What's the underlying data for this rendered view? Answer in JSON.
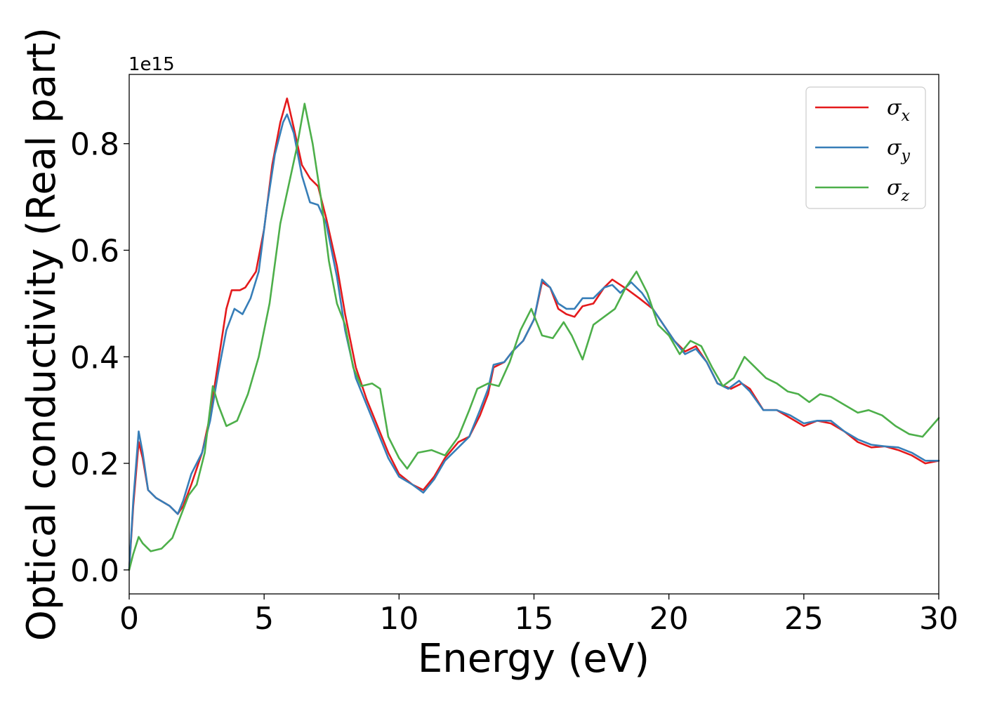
{
  "chart_data": {
    "type": "line",
    "title": "",
    "xlabel": "Energy (eV)",
    "ylabel": "Optical conductivity (Real part)",
    "y_offset_label": "1e15",
    "xlim": [
      0,
      30
    ],
    "ylim": [
      -0.045,
      0.93
    ],
    "x_ticks": [
      0,
      5,
      10,
      15,
      20,
      25,
      30
    ],
    "x_tick_labels": [
      "0",
      "5",
      "10",
      "15",
      "20",
      "25",
      "30"
    ],
    "y_ticks": [
      0.0,
      0.2,
      0.4,
      0.6,
      0.8
    ],
    "y_tick_labels": [
      "0.0",
      "0.2",
      "0.4",
      "0.6",
      "0.8"
    ],
    "grid": false,
    "legend_position": "top-right",
    "legend": [
      {
        "symbol": "σ",
        "subscript": "x",
        "color": "#e41a1c"
      },
      {
        "symbol": "σ",
        "subscript": "y",
        "color": "#377eb8"
      },
      {
        "symbol": "σ",
        "subscript": "z",
        "color": "#4daf4a"
      }
    ],
    "series": [
      {
        "name": "σx",
        "color": "#e41a1c",
        "points": [
          [
            0,
            0
          ],
          [
            0.15,
            0.12
          ],
          [
            0.35,
            0.24
          ],
          [
            0.5,
            0.21
          ],
          [
            0.7,
            0.15
          ],
          [
            1.0,
            0.135
          ],
          [
            1.5,
            0.12
          ],
          [
            1.8,
            0.105
          ],
          [
            2.0,
            0.12
          ],
          [
            2.3,
            0.16
          ],
          [
            2.7,
            0.22
          ],
          [
            3.0,
            0.29
          ],
          [
            3.3,
            0.39
          ],
          [
            3.6,
            0.49
          ],
          [
            3.8,
            0.525
          ],
          [
            4.1,
            0.525
          ],
          [
            4.3,
            0.53
          ],
          [
            4.7,
            0.56
          ],
          [
            5.0,
            0.64
          ],
          [
            5.3,
            0.76
          ],
          [
            5.6,
            0.84
          ],
          [
            5.85,
            0.885
          ],
          [
            6.1,
            0.83
          ],
          [
            6.4,
            0.76
          ],
          [
            6.7,
            0.735
          ],
          [
            7.0,
            0.72
          ],
          [
            7.3,
            0.66
          ],
          [
            7.7,
            0.57
          ],
          [
            8.0,
            0.48
          ],
          [
            8.4,
            0.38
          ],
          [
            8.8,
            0.32
          ],
          [
            9.2,
            0.27
          ],
          [
            9.6,
            0.22
          ],
          [
            10.0,
            0.18
          ],
          [
            10.5,
            0.16
          ],
          [
            10.9,
            0.15
          ],
          [
            11.3,
            0.175
          ],
          [
            11.7,
            0.21
          ],
          [
            12.2,
            0.24
          ],
          [
            12.6,
            0.25
          ],
          [
            13.0,
            0.29
          ],
          [
            13.3,
            0.33
          ],
          [
            13.5,
            0.38
          ],
          [
            13.9,
            0.39
          ],
          [
            14.2,
            0.41
          ],
          [
            14.6,
            0.43
          ],
          [
            15.0,
            0.47
          ],
          [
            15.3,
            0.54
          ],
          [
            15.6,
            0.53
          ],
          [
            15.9,
            0.49
          ],
          [
            16.2,
            0.48
          ],
          [
            16.5,
            0.475
          ],
          [
            16.8,
            0.495
          ],
          [
            17.2,
            0.5
          ],
          [
            17.6,
            0.53
          ],
          [
            17.9,
            0.545
          ],
          [
            18.2,
            0.535
          ],
          [
            18.5,
            0.525
          ],
          [
            18.9,
            0.51
          ],
          [
            19.4,
            0.49
          ],
          [
            19.8,
            0.46
          ],
          [
            20.2,
            0.43
          ],
          [
            20.6,
            0.41
          ],
          [
            21.0,
            0.42
          ],
          [
            21.4,
            0.39
          ],
          [
            21.8,
            0.35
          ],
          [
            22.3,
            0.34
          ],
          [
            22.7,
            0.35
          ],
          [
            23.0,
            0.34
          ],
          [
            23.5,
            0.3
          ],
          [
            24.0,
            0.3
          ],
          [
            24.5,
            0.285
          ],
          [
            25.0,
            0.27
          ],
          [
            25.5,
            0.28
          ],
          [
            26.0,
            0.275
          ],
          [
            26.5,
            0.26
          ],
          [
            27.0,
            0.24
          ],
          [
            27.5,
            0.23
          ],
          [
            28.0,
            0.232
          ],
          [
            28.5,
            0.225
          ],
          [
            29.0,
            0.215
          ],
          [
            29.5,
            0.2
          ],
          [
            30.0,
            0.205
          ]
        ]
      },
      {
        "name": "σy",
        "color": "#377eb8",
        "points": [
          [
            0,
            0
          ],
          [
            0.15,
            0.13
          ],
          [
            0.35,
            0.26
          ],
          [
            0.5,
            0.22
          ],
          [
            0.7,
            0.15
          ],
          [
            1.0,
            0.135
          ],
          [
            1.5,
            0.12
          ],
          [
            1.8,
            0.105
          ],
          [
            2.0,
            0.13
          ],
          [
            2.3,
            0.18
          ],
          [
            2.7,
            0.22
          ],
          [
            3.0,
            0.28
          ],
          [
            3.3,
            0.37
          ],
          [
            3.6,
            0.45
          ],
          [
            3.9,
            0.49
          ],
          [
            4.2,
            0.48
          ],
          [
            4.5,
            0.51
          ],
          [
            4.8,
            0.56
          ],
          [
            5.1,
            0.68
          ],
          [
            5.4,
            0.78
          ],
          [
            5.7,
            0.84
          ],
          [
            5.85,
            0.855
          ],
          [
            6.1,
            0.82
          ],
          [
            6.4,
            0.74
          ],
          [
            6.7,
            0.69
          ],
          [
            7.0,
            0.685
          ],
          [
            7.3,
            0.65
          ],
          [
            7.7,
            0.55
          ],
          [
            8.0,
            0.45
          ],
          [
            8.4,
            0.36
          ],
          [
            8.8,
            0.31
          ],
          [
            9.2,
            0.26
          ],
          [
            9.6,
            0.21
          ],
          [
            10.0,
            0.175
          ],
          [
            10.5,
            0.16
          ],
          [
            10.9,
            0.145
          ],
          [
            11.3,
            0.17
          ],
          [
            11.7,
            0.205
          ],
          [
            12.2,
            0.23
          ],
          [
            12.6,
            0.25
          ],
          [
            13.0,
            0.3
          ],
          [
            13.3,
            0.34
          ],
          [
            13.5,
            0.385
          ],
          [
            13.9,
            0.39
          ],
          [
            14.2,
            0.41
          ],
          [
            14.6,
            0.43
          ],
          [
            15.0,
            0.47
          ],
          [
            15.3,
            0.545
          ],
          [
            15.6,
            0.53
          ],
          [
            15.9,
            0.5
          ],
          [
            16.2,
            0.49
          ],
          [
            16.5,
            0.49
          ],
          [
            16.8,
            0.51
          ],
          [
            17.2,
            0.51
          ],
          [
            17.6,
            0.53
          ],
          [
            17.9,
            0.535
          ],
          [
            18.2,
            0.52
          ],
          [
            18.6,
            0.54
          ],
          [
            19.0,
            0.52
          ],
          [
            19.4,
            0.49
          ],
          [
            19.8,
            0.46
          ],
          [
            20.2,
            0.43
          ],
          [
            20.6,
            0.405
          ],
          [
            21.0,
            0.415
          ],
          [
            21.4,
            0.39
          ],
          [
            21.8,
            0.35
          ],
          [
            22.2,
            0.34
          ],
          [
            22.6,
            0.355
          ],
          [
            23.0,
            0.335
          ],
          [
            23.5,
            0.3
          ],
          [
            24.0,
            0.3
          ],
          [
            24.5,
            0.29
          ],
          [
            25.0,
            0.275
          ],
          [
            25.5,
            0.28
          ],
          [
            26.0,
            0.28
          ],
          [
            26.5,
            0.26
          ],
          [
            27.0,
            0.245
          ],
          [
            27.5,
            0.235
          ],
          [
            28.0,
            0.232
          ],
          [
            28.5,
            0.23
          ],
          [
            29.0,
            0.22
          ],
          [
            29.5,
            0.205
          ],
          [
            30.0,
            0.205
          ]
        ]
      },
      {
        "name": "σz",
        "color": "#4daf4a",
        "points": [
          [
            0,
            0
          ],
          [
            0.15,
            0.03
          ],
          [
            0.35,
            0.062
          ],
          [
            0.5,
            0.05
          ],
          [
            0.8,
            0.035
          ],
          [
            1.2,
            0.04
          ],
          [
            1.6,
            0.06
          ],
          [
            1.9,
            0.1
          ],
          [
            2.2,
            0.14
          ],
          [
            2.5,
            0.16
          ],
          [
            2.8,
            0.22
          ],
          [
            3.1,
            0.345
          ],
          [
            3.3,
            0.31
          ],
          [
            3.6,
            0.27
          ],
          [
            4.0,
            0.28
          ],
          [
            4.4,
            0.33
          ],
          [
            4.8,
            0.4
          ],
          [
            5.2,
            0.5
          ],
          [
            5.6,
            0.65
          ],
          [
            5.9,
            0.72
          ],
          [
            6.2,
            0.79
          ],
          [
            6.5,
            0.875
          ],
          [
            6.8,
            0.8
          ],
          [
            7.1,
            0.7
          ],
          [
            7.4,
            0.58
          ],
          [
            7.7,
            0.5
          ],
          [
            8.0,
            0.46
          ],
          [
            8.3,
            0.38
          ],
          [
            8.6,
            0.345
          ],
          [
            9.0,
            0.35
          ],
          [
            9.3,
            0.34
          ],
          [
            9.6,
            0.25
          ],
          [
            10.0,
            0.21
          ],
          [
            10.3,
            0.19
          ],
          [
            10.7,
            0.22
          ],
          [
            11.2,
            0.225
          ],
          [
            11.7,
            0.215
          ],
          [
            12.2,
            0.25
          ],
          [
            12.6,
            0.3
          ],
          [
            12.9,
            0.34
          ],
          [
            13.3,
            0.35
          ],
          [
            13.7,
            0.345
          ],
          [
            14.1,
            0.39
          ],
          [
            14.5,
            0.45
          ],
          [
            14.9,
            0.49
          ],
          [
            15.3,
            0.44
          ],
          [
            15.7,
            0.435
          ],
          [
            16.1,
            0.465
          ],
          [
            16.4,
            0.44
          ],
          [
            16.8,
            0.395
          ],
          [
            17.2,
            0.46
          ],
          [
            17.6,
            0.475
          ],
          [
            18.0,
            0.49
          ],
          [
            18.4,
            0.53
          ],
          [
            18.8,
            0.56
          ],
          [
            19.2,
            0.52
          ],
          [
            19.6,
            0.46
          ],
          [
            20.0,
            0.44
          ],
          [
            20.4,
            0.405
          ],
          [
            20.8,
            0.43
          ],
          [
            21.2,
            0.42
          ],
          [
            21.6,
            0.38
          ],
          [
            22.0,
            0.345
          ],
          [
            22.4,
            0.36
          ],
          [
            22.8,
            0.4
          ],
          [
            23.2,
            0.38
          ],
          [
            23.6,
            0.36
          ],
          [
            24.0,
            0.35
          ],
          [
            24.4,
            0.335
          ],
          [
            24.8,
            0.33
          ],
          [
            25.2,
            0.315
          ],
          [
            25.6,
            0.33
          ],
          [
            26.0,
            0.325
          ],
          [
            26.5,
            0.31
          ],
          [
            27.0,
            0.295
          ],
          [
            27.4,
            0.3
          ],
          [
            27.9,
            0.29
          ],
          [
            28.4,
            0.27
          ],
          [
            28.9,
            0.255
          ],
          [
            29.4,
            0.25
          ],
          [
            30.0,
            0.285
          ]
        ]
      }
    ]
  }
}
